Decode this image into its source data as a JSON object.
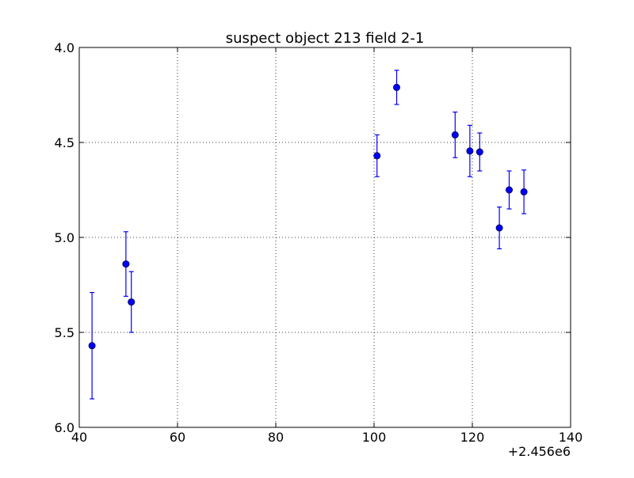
{
  "chart_data": {
    "type": "scatter",
    "title": "suspect object 213 field 2-1",
    "xlabel": "",
    "ylabel": "",
    "x_offset_label": "+2.456e6",
    "xlim": [
      40,
      140
    ],
    "ylim": [
      4.0,
      6.0
    ],
    "y_inverted": true,
    "grid": true,
    "x_ticks": [
      40,
      60,
      80,
      100,
      120,
      140
    ],
    "x_tick_labels": [
      "40",
      "60",
      "80",
      "100",
      "120",
      "140"
    ],
    "y_ticks": [
      4.0,
      4.5,
      5.0,
      5.5,
      6.0
    ],
    "y_tick_labels": [
      "4.0",
      "4.5",
      "5.0",
      "5.5",
      "6.0"
    ],
    "series": [
      {
        "marker": "circle",
        "errorbars": true,
        "points": [
          {
            "x": 42.6,
            "y": 5.57,
            "err": 0.28
          },
          {
            "x": 49.5,
            "y": 5.14,
            "err": 0.17
          },
          {
            "x": 50.6,
            "y": 5.34,
            "err": 0.16
          },
          {
            "x": 100.6,
            "y": 4.57,
            "err": 0.11
          },
          {
            "x": 104.6,
            "y": 4.21,
            "err": 0.09
          },
          {
            "x": 116.5,
            "y": 4.46,
            "err": 0.12
          },
          {
            "x": 119.5,
            "y": 4.545,
            "err": 0.135
          },
          {
            "x": 121.5,
            "y": 4.55,
            "err": 0.1
          },
          {
            "x": 125.5,
            "y": 4.95,
            "err": 0.11
          },
          {
            "x": 127.5,
            "y": 4.75,
            "err": 0.1
          },
          {
            "x": 130.5,
            "y": 4.76,
            "err": 0.115
          }
        ]
      }
    ]
  },
  "colors": {
    "series": "#0000ff",
    "point_edge": "#000000",
    "axes": "#000000",
    "grid": "#000000",
    "background": "#ffffff"
  }
}
